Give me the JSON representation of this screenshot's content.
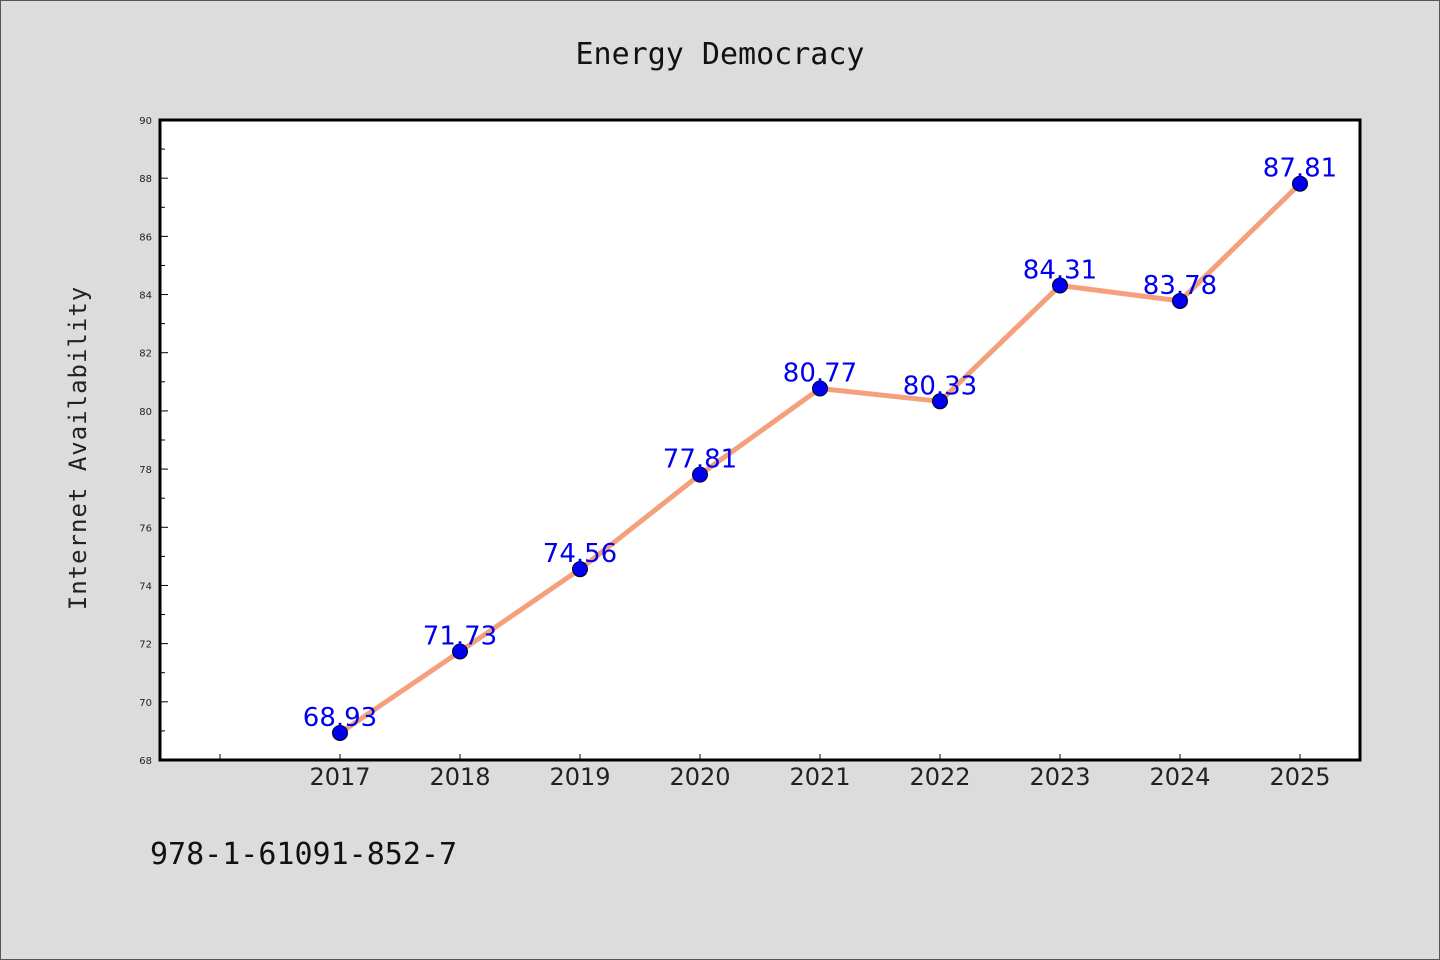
{
  "chart_data": {
    "type": "line",
    "title": "Energy Democracy",
    "xlabel": "",
    "ylabel": "Internet Availability",
    "x": [
      "2017",
      "2018",
      "2019",
      "2020",
      "2021",
      "2022",
      "2023",
      "2024",
      "2025"
    ],
    "values": [
      68.93,
      71.73,
      74.56,
      77.81,
      80.77,
      80.33,
      84.31,
      83.78,
      87.81
    ],
    "value_labels": [
      "68.93",
      "71.73",
      "74.56",
      "77.81",
      "80.77",
      "80.33",
      "84.31",
      "83.78",
      "87.81"
    ],
    "ylim": [
      68,
      90
    ],
    "yticks": [
      "68",
      "70",
      "72",
      "74",
      "76",
      "78",
      "80",
      "82",
      "84",
      "86",
      "88",
      "90"
    ],
    "grid": false,
    "legend": "none",
    "colors": {
      "line": "#f4a07c",
      "marker": "#0000ee",
      "label": "#0000ee",
      "background": "#dcdcdc",
      "plot_background": "#ffffff"
    }
  },
  "footer": {
    "text": "978-1-61091-852-7"
  }
}
